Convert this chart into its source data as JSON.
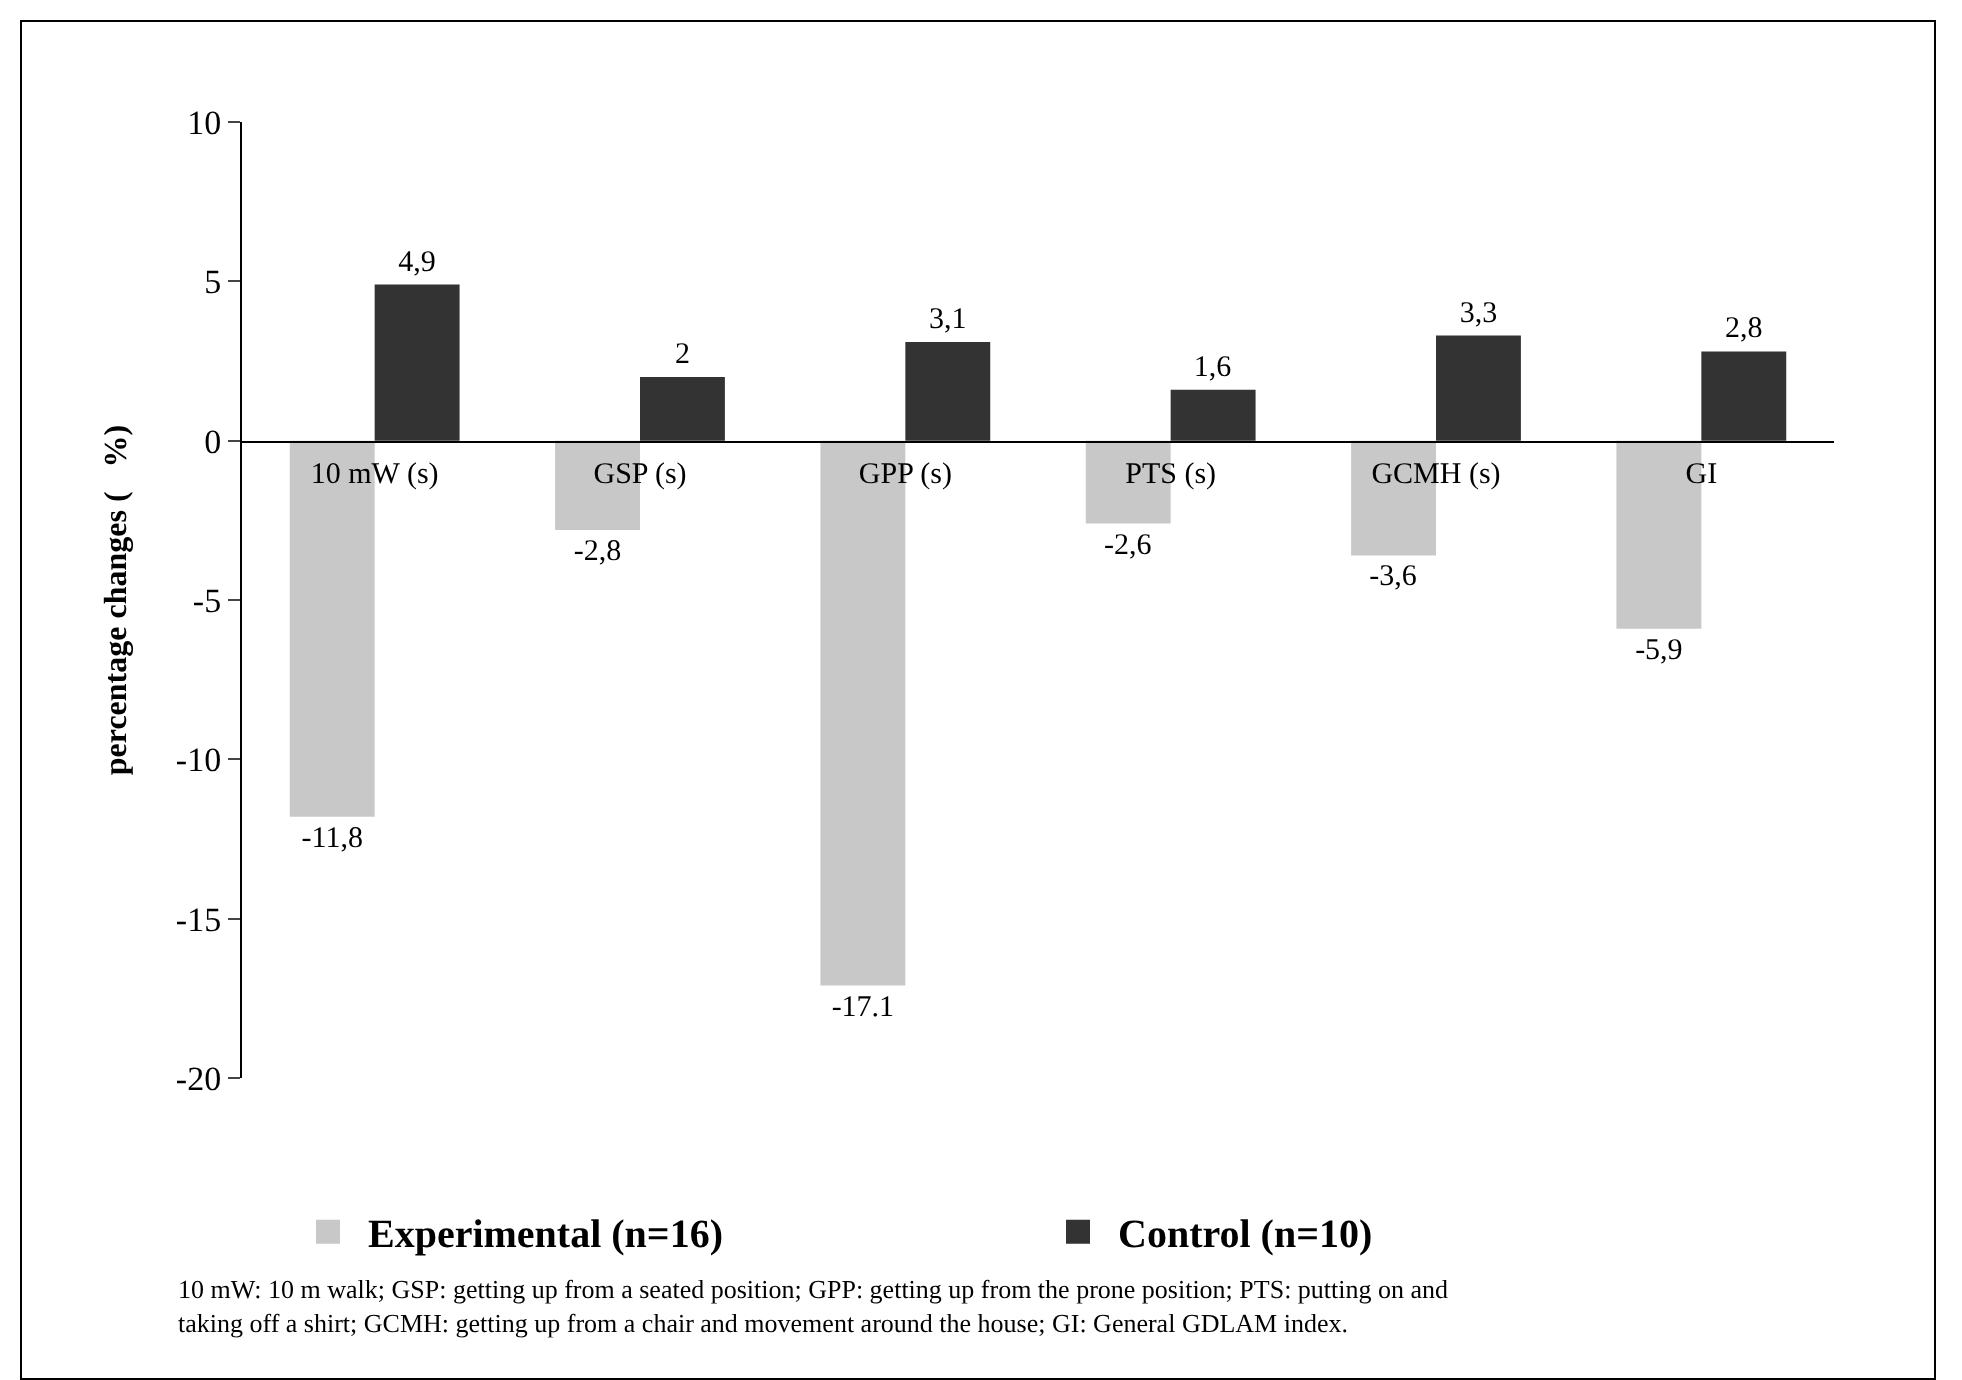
{
  "chart_data": {
    "type": "bar",
    "ylabel": "percentage changes (   %)",
    "categories": [
      "10 mW (s)",
      "GSP (s)",
      "GPP (s)",
      "PTS (s)",
      "GCMH (s)",
      "GI"
    ],
    "series": [
      {
        "name": "Experimental (n=16)",
        "color": "#c8c8c8",
        "values": [
          -11.8,
          -2.8,
          -17.1,
          -2.6,
          -3.6,
          -5.9
        ],
        "value_labels": [
          "-11,8",
          "-2,8",
          "-17.1",
          "-2,6",
          "-3,6",
          "-5,9"
        ]
      },
      {
        "name": "Control (n=10)",
        "color": "#333333",
        "values": [
          4.9,
          2,
          3.1,
          1.6,
          3.3,
          2.8
        ],
        "value_labels": [
          "4,9",
          "2",
          "3,1",
          "1,6",
          "3,3",
          "2,8"
        ]
      }
    ],
    "ylim": [
      -20,
      10
    ],
    "yticks": [
      -20,
      -15,
      -10,
      -5,
      0,
      5,
      10
    ],
    "grid": false,
    "legend": "bottom",
    "annotations": [
      "10 mW: 10 m walk; GSP: getting up from a seated position; GPP: getting up from the prone position; PTS: putting on and taking off a shirt; GCMH: getting up from a chair and movement around the house; GI: General GDLAM index."
    ]
  }
}
